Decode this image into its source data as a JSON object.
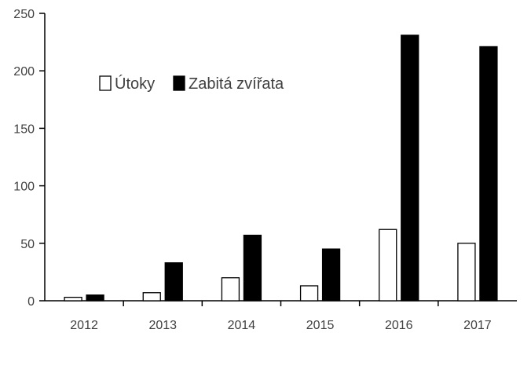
{
  "chart_data": {
    "type": "bar",
    "categories": [
      "2012",
      "2013",
      "2014",
      "2015",
      "2016",
      "2017"
    ],
    "series": [
      {
        "name": "Útoky",
        "values": [
          3,
          7,
          20,
          13,
          62,
          50
        ],
        "fill": "#ffffff",
        "stroke": "#000000"
      },
      {
        "name": "Zabitá zvířata",
        "values": [
          5,
          33,
          57,
          45,
          231,
          221
        ],
        "fill": "#000000",
        "stroke": "#000000"
      }
    ],
    "title": "",
    "xlabel": "",
    "ylabel": "",
    "ylim": [
      0,
      250
    ],
    "yticks": [
      0,
      50,
      100,
      150,
      200,
      250
    ],
    "grid": false,
    "legend": "top-left"
  }
}
